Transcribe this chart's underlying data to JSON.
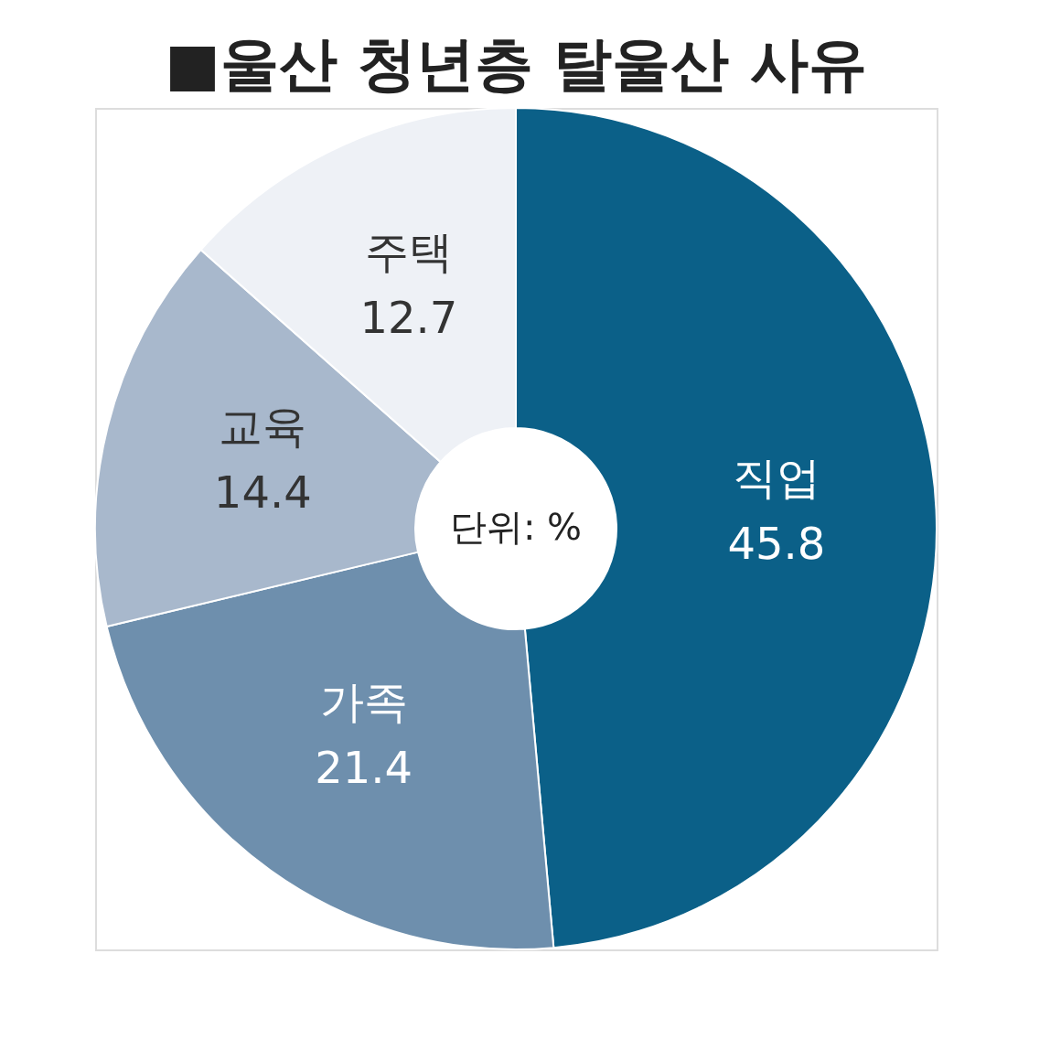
{
  "chart_data": {
    "type": "donut",
    "title": "■울산 청년층 탈울산 사유",
    "categories": [
      "직업",
      "가족",
      "교육",
      "주택"
    ],
    "values": [
      45.8,
      21.4,
      14.4,
      12.7
    ],
    "colors": [
      "#0b6088",
      "#6e8fad",
      "#a8b8cc",
      "#eef1f6"
    ],
    "data_labels": true,
    "legend": false,
    "annotations": [
      "단위: %"
    ]
  }
}
